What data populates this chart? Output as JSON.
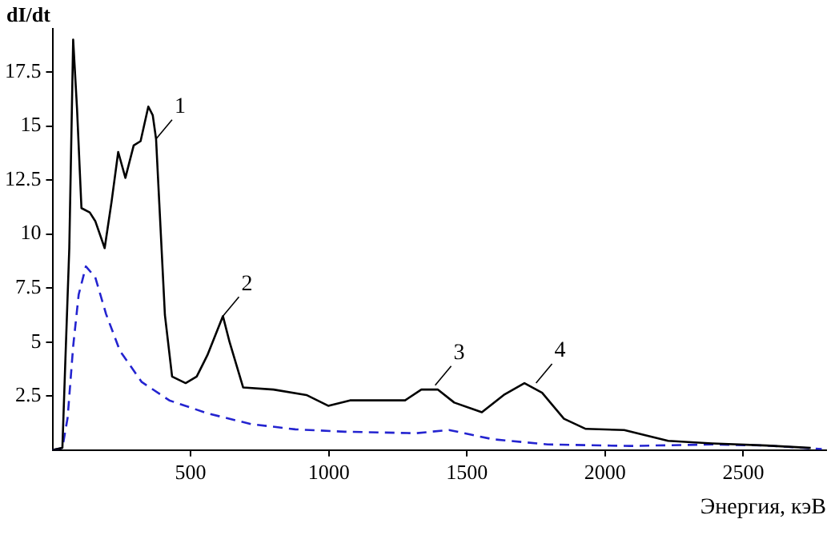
{
  "chart_data": {
    "type": "line",
    "xlabel": "Энергия, кэВ",
    "ylabel": "dI/dt",
    "xlim": [
      0,
      2800
    ],
    "ylim": [
      0,
      19.5
    ],
    "xticks": [
      500,
      1000,
      1500,
      2000,
      2500
    ],
    "yticks": [
      2.5,
      5,
      7.5,
      10,
      12.5,
      15,
      17.5
    ],
    "grid": false,
    "legend": false,
    "marker": "none",
    "series": [
      {
        "color": "#000000",
        "line_style": "solid",
        "x": [
          0,
          36,
          46,
          61,
          75,
          89,
          105,
          135,
          155,
          189,
          214,
          238,
          264,
          294,
          319,
          347,
          363,
          375,
          407,
          433,
          482,
          522,
          561,
          617,
          641,
          690,
          800,
          919,
          998,
          1077,
          1196,
          1276,
          1335,
          1395,
          1454,
          1554,
          1633,
          1708,
          1772,
          1851,
          1930,
          2069,
          2228,
          2387,
          2585,
          2744
        ],
        "values": [
          0,
          0.1,
          3.85,
          9.35,
          19.0,
          15.8,
          11.2,
          11.0,
          10.6,
          9.35,
          11.5,
          13.8,
          12.6,
          14.1,
          14.3,
          15.9,
          15.5,
          14.4,
          6.25,
          3.4,
          3.1,
          3.4,
          4.4,
          6.2,
          5.0,
          2.9,
          2.8,
          2.55,
          2.05,
          2.3,
          2.3,
          2.3,
          2.8,
          2.8,
          2.2,
          1.75,
          2.55,
          3.1,
          2.65,
          1.45,
          0.98,
          0.93,
          0.43,
          0.31,
          0.21,
          0.1
        ]
      },
      {
        "color": "#2424d0",
        "line_style": "dashed",
        "x": [
          0,
          36,
          55,
          75,
          95,
          121,
          155,
          194,
          244,
          323,
          423,
          561,
          720,
          879,
          1058,
          1315,
          1435,
          1594,
          1792,
          2089,
          2387,
          2585,
          2784
        ],
        "values": [
          0,
          0.1,
          1.5,
          4.8,
          7.2,
          8.5,
          8.0,
          6.3,
          4.6,
          3.15,
          2.3,
          1.7,
          1.2,
          0.96,
          0.85,
          0.78,
          0.93,
          0.5,
          0.26,
          0.19,
          0.26,
          0.21,
          0.05
        ]
      }
    ],
    "annotations": [
      {
        "text": "1",
        "x": 375,
        "y": 14.4
      },
      {
        "text": "2",
        "x": 617,
        "y": 6.2
      },
      {
        "text": "3",
        "x": 1385,
        "y": 3.0
      },
      {
        "text": "4",
        "x": 1750,
        "y": 3.1
      }
    ]
  }
}
